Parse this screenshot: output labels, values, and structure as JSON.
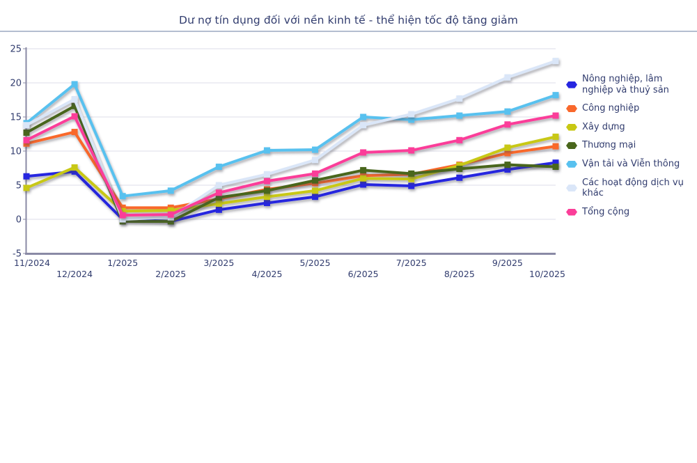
{
  "title": "Dư nợ tín dụng đối với nền kinh tế - thể hiện tốc độ tăng giảm",
  "colors": {
    "text": "#313c6e",
    "axis": "#8a8aa5",
    "grid": "#dcdce8",
    "separator": "#b4bdd0",
    "background": "#ffffff"
  },
  "chart_data": {
    "type": "line",
    "title": "Dư nợ tín dụng đối với nền kinh tế - thể hiện tốc độ tăng giảm",
    "x": [
      "11/2024",
      "12/2024",
      "1/2025",
      "2/2025",
      "3/2025",
      "4/2025",
      "5/2025",
      "6/2025",
      "7/2025",
      "8/2025",
      "9/2025",
      "10/2025"
    ],
    "series": [
      {
        "name": "Nông nghiệp, lâm nghiệp và thuỷ sản",
        "color": "#2626e0",
        "values": [
          6.3,
          7.0,
          0.0,
          -0.3,
          1.4,
          2.4,
          3.3,
          5.1,
          4.9,
          6.1,
          7.3,
          8.3
        ]
      },
      {
        "name": "Công nghiệp",
        "color": "#f9682c",
        "values": [
          11.1,
          12.8,
          1.7,
          1.7,
          3.0,
          4.4,
          5.3,
          6.4,
          6.6,
          8.0,
          9.7,
          10.7
        ]
      },
      {
        "name": "Xây dựng",
        "color": "#c8c813",
        "values": [
          4.6,
          7.6,
          1.2,
          1.3,
          2.3,
          3.3,
          4.2,
          6.0,
          5.9,
          7.9,
          10.5,
          12.1
        ]
      },
      {
        "name": "Thương mại",
        "color": "#49661b",
        "values": [
          12.7,
          16.6,
          -0.3,
          -0.3,
          3.2,
          4.2,
          5.7,
          7.2,
          6.7,
          7.4,
          8.0,
          7.7
        ]
      },
      {
        "name": "Vận tải và Viễn thông",
        "color": "#58c1ef",
        "values": [
          14.1,
          19.8,
          3.4,
          4.2,
          7.7,
          10.1,
          10.2,
          15.0,
          14.6,
          15.2,
          15.8,
          18.2
        ]
      },
      {
        "name": "Các hoạt động dịch vụ khác",
        "color": "#dae6f8",
        "values": [
          13.8,
          17.6,
          0.0,
          0.3,
          5.0,
          6.6,
          8.7,
          13.8,
          15.4,
          17.7,
          20.8,
          23.2
        ]
      },
      {
        "name": "Tổng cộng",
        "color": "#fb3e99",
        "values": [
          11.6,
          15.1,
          0.6,
          0.7,
          3.9,
          5.6,
          6.7,
          9.8,
          10.1,
          11.6,
          13.9,
          15.2
        ]
      }
    ],
    "ylim": [
      -5,
      25
    ],
    "y_ticks": [
      -5,
      0,
      5,
      10,
      15,
      20,
      25
    ],
    "xlabel": "",
    "ylabel": "",
    "grid": true,
    "legend_position": "right",
    "marker": "square",
    "x_label_stagger": true
  }
}
